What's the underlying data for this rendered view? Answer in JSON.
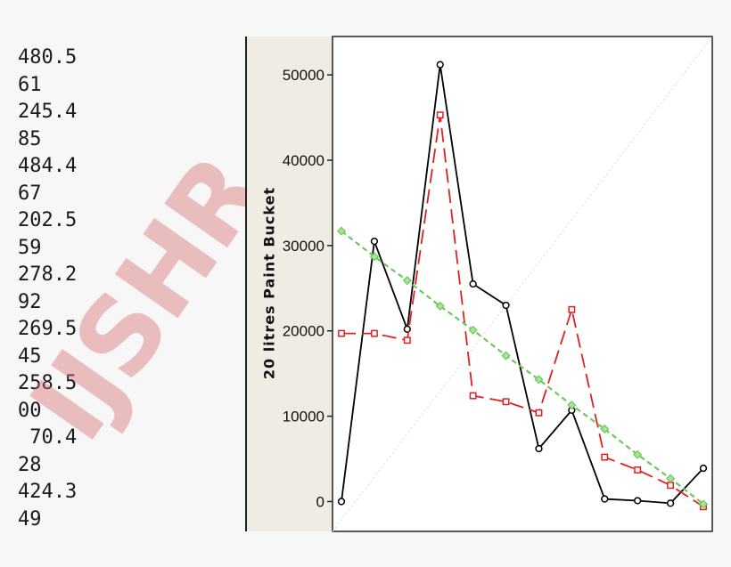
{
  "left_values": [
    "480.5",
    "61",
    "245.4",
    "85",
    "484.4",
    "67",
    "202.5",
    "59",
    "278.2",
    "92",
    "269.5",
    "45",
    "258.5",
    "00",
    " 70.4",
    "28",
    "424.3",
    "49"
  ],
  "watermark": "IJSHR",
  "chart_data": {
    "type": "line",
    "title": "",
    "xlabel": "",
    "ylabel": "20 litres Paint Bucket",
    "ylim": [
      -3500,
      54500
    ],
    "yticks": [
      "0",
      "10000",
      "20000",
      "30000",
      "40000",
      "50000"
    ],
    "grid": false,
    "legend": "none",
    "x": [
      1,
      2,
      3,
      4,
      5,
      6,
      7,
      8,
      9,
      10,
      11,
      12
    ],
    "series": [
      {
        "color": "#000000",
        "dash": "solid",
        "marker": "circle",
        "values": [
          0,
          30500,
          20200,
          51200,
          25500,
          23000,
          6200,
          10700,
          300,
          100,
          -200,
          3900
        ]
      },
      {
        "color": "#e02020",
        "dash": "long-dash",
        "marker": "square",
        "values": [
          19700,
          19700,
          18900,
          45300,
          12400,
          11700,
          10400,
          22500,
          5200,
          3700,
          1900,
          -600
        ]
      },
      {
        "color": "#6dc95a",
        "dash": "short-dash",
        "marker": "diamond",
        "values": [
          31700,
          28700,
          25900,
          22900,
          20100,
          17100,
          14300,
          11300,
          8500,
          5500,
          2700,
          -300
        ]
      }
    ]
  }
}
